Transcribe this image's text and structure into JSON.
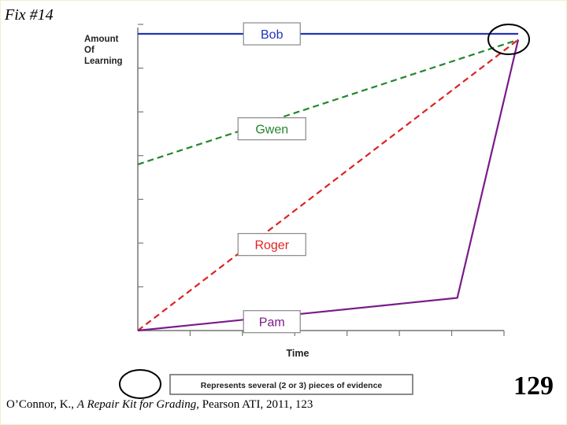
{
  "slide": {
    "title": "Fix #14",
    "citation_author": "O’Connor, K., ",
    "citation_title": "A Repair Kit for Grading,",
    "citation_rest": " Pearson ATI, 2011, 123",
    "page_number": "129"
  },
  "chart_data": {
    "type": "line",
    "ylabel_lines": [
      "Amount",
      "Of",
      "Learning"
    ],
    "xlabel": "Time",
    "x_ticks": 7,
    "y_ticks": 7,
    "series": [
      {
        "name": "Bob",
        "color": "#2233bb",
        "dash": "solid",
        "points": [
          [
            0,
            100
          ],
          [
            1,
            100
          ]
        ],
        "label_at": [
          0.28,
          100
        ]
      },
      {
        "name": "Gwen",
        "color": "#22882a",
        "dash": "dashed",
        "points": [
          [
            0,
            56
          ],
          [
            1,
            98
          ]
        ],
        "label_at": [
          0.28,
          68
        ]
      },
      {
        "name": "Roger",
        "color": "#dd2222",
        "dash": "dashed",
        "points": [
          [
            0,
            0
          ],
          [
            1,
            98
          ]
        ],
        "label_at": [
          0.28,
          29
        ]
      },
      {
        "name": "Pam",
        "color": "#7a1a8a",
        "dash": "solid",
        "points": [
          [
            0,
            0
          ],
          [
            0.84,
            11
          ],
          [
            1,
            98
          ]
        ],
        "label_at": [
          0.28,
          3
        ]
      }
    ],
    "legend": {
      "symbol": "circle",
      "text": "Represents several (2 or 3) pieces of evidence"
    }
  }
}
